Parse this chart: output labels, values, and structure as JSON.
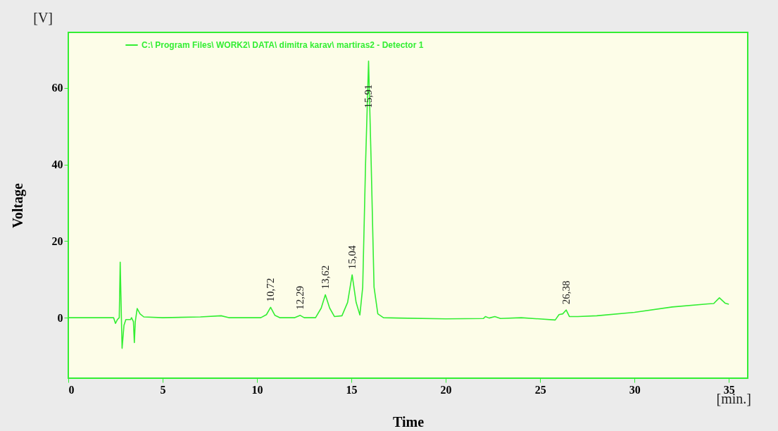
{
  "chart_data": {
    "type": "line",
    "xlabel": "Time",
    "ylabel": "Voltage",
    "x": [
      0,
      2.4,
      2.5,
      2.6,
      2.7,
      2.75,
      2.8,
      2.85,
      2.95,
      3.05,
      3.3,
      3.35,
      3.45,
      3.5,
      3.55,
      3.65,
      3.8,
      4.0,
      5,
      7,
      8.1,
      8.5,
      10.2,
      10.5,
      10.72,
      10.95,
      11.2,
      12,
      12.29,
      12.5,
      13.1,
      13.4,
      13.62,
      13.85,
      14.1,
      14.5,
      14.8,
      15.04,
      15.25,
      15.45,
      15.6,
      15.75,
      15.91,
      16.05,
      16.2,
      16.4,
      16.7,
      17.5,
      20,
      22,
      22.1,
      22.3,
      22.6,
      22.9,
      24,
      25.8,
      26.0,
      26.2,
      26.38,
      26.55,
      27,
      28,
      30,
      32,
      33.9,
      34.2,
      34.5,
      34.8,
      35
    ],
    "series": [
      {
        "name": "C:\\ Program Files\\ WORK2\\ DATA\\ dimitra karav\\ martiras2 - Detector 1",
        "color": "#33ee33",
        "values": [
          0,
          0,
          -1.5,
          -0.5,
          0,
          14.5,
          3,
          -8,
          -2,
          -0.5,
          -0.5,
          0,
          -1,
          -6.5,
          -1,
          2.4,
          1,
          0.2,
          0,
          0.2,
          0.5,
          0,
          0,
          0.8,
          2.7,
          0.6,
          0,
          0,
          0.6,
          0,
          0,
          2.5,
          6,
          2.5,
          0.3,
          0.5,
          4,
          11.2,
          4,
          0.7,
          8,
          40,
          67,
          40,
          8,
          1,
          0,
          -0.1,
          -0.3,
          -0.2,
          0.3,
          -0.1,
          0.3,
          -0.2,
          0,
          -0.6,
          0.8,
          1.0,
          2.0,
          0.3,
          0.3,
          0.5,
          1.4,
          2.8,
          3.6,
          3.7,
          5.2,
          3.8,
          3.5
        ]
      }
    ],
    "xlim": [
      0,
      36
    ],
    "xticks": [
      0,
      5,
      10,
      15,
      20,
      25,
      30,
      35
    ],
    "ylim": [
      -15.8,
      74.5
    ],
    "yticks": [
      0,
      20,
      40,
      60
    ],
    "grid": false,
    "legend": "top left",
    "annotations": [
      {
        "text": "10,72",
        "x": 10.72,
        "y": 2.7
      },
      {
        "text": "12,29",
        "x": 12.29,
        "y": 0.6
      },
      {
        "text": "13,62",
        "x": 13.62,
        "y": 6
      },
      {
        "text": "15,04",
        "x": 15.04,
        "y": 11.2
      },
      {
        "text": "15,91",
        "x": 15.91,
        "y": 67
      },
      {
        "text": "26,38",
        "x": 26.38,
        "y": 2.0
      },
      "[V]",
      "[min.]"
    ]
  }
}
